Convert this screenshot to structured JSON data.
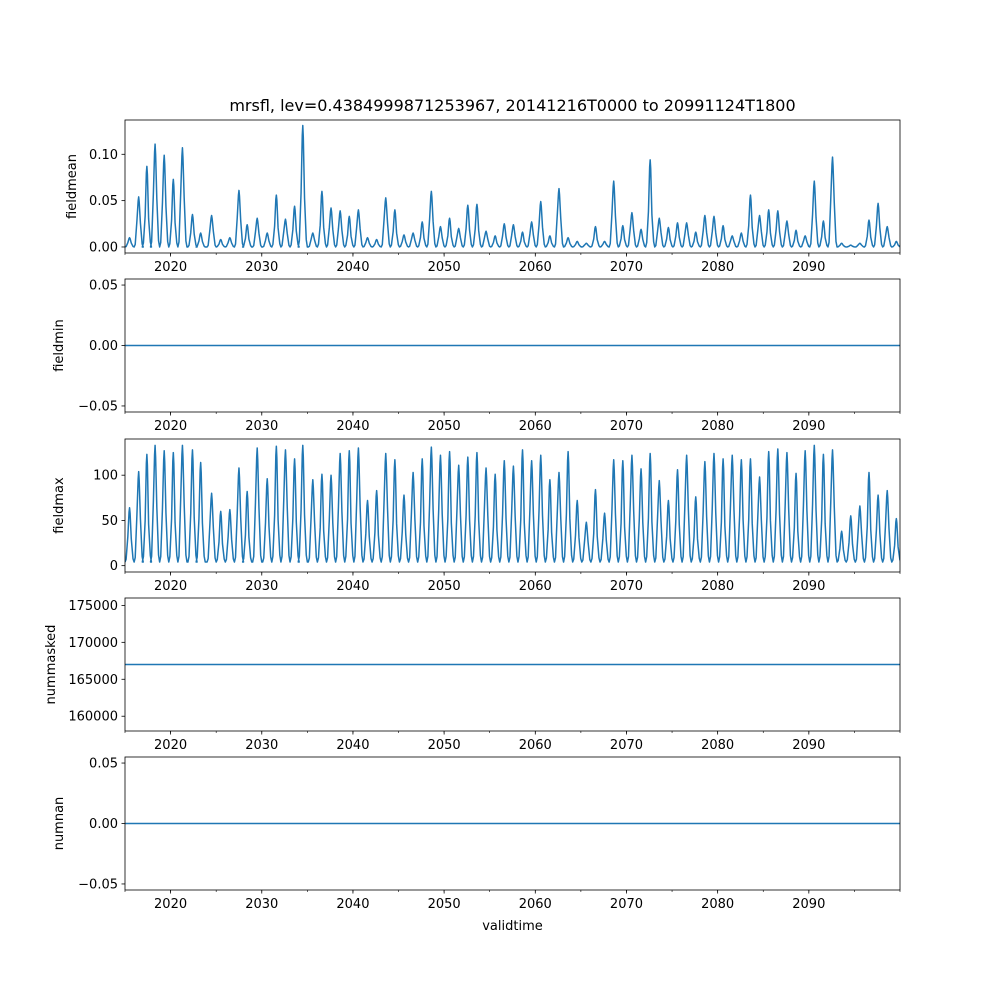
{
  "figure": {
    "title": "mrsfl, lev=0.4384999871253967, 20141216T0000 to 20991124T1800",
    "xlabel": "validtime",
    "xlim": [
      2015.0,
      2100.0
    ],
    "x_ticks": [
      2020,
      2030,
      2040,
      2050,
      2060,
      2070,
      2080,
      2090
    ],
    "x_tick_labels": [
      "2020",
      "2030",
      "2040",
      "2050",
      "2060",
      "2070",
      "2080",
      "2090"
    ],
    "line_color": "#1f77b4"
  },
  "chart_data": [
    {
      "type": "line",
      "ylabel": "fieldmean",
      "ylim": [
        -0.0065,
        0.137
      ],
      "y_ticks": [
        0.0,
        0.05,
        0.1
      ],
      "y_tick_labels": [
        "0.00",
        "0.05",
        "0.10"
      ],
      "baseline": 0.0,
      "events": [
        [
          2015.5,
          0.01
        ],
        [
          2016.5,
          0.054
        ],
        [
          2017.4,
          0.087
        ],
        [
          2018.3,
          0.111
        ],
        [
          2019.3,
          0.099
        ],
        [
          2020.3,
          0.073
        ],
        [
          2021.3,
          0.107
        ],
        [
          2022.4,
          0.035
        ],
        [
          2023.3,
          0.015
        ],
        [
          2024.5,
          0.034
        ],
        [
          2025.5,
          0.008
        ],
        [
          2026.5,
          0.01
        ],
        [
          2027.5,
          0.061
        ],
        [
          2028.4,
          0.024
        ],
        [
          2029.5,
          0.031
        ],
        [
          2030.6,
          0.015
        ],
        [
          2031.6,
          0.056
        ],
        [
          2032.6,
          0.03
        ],
        [
          2033.6,
          0.044
        ],
        [
          2034.5,
          0.131
        ],
        [
          2035.6,
          0.015
        ],
        [
          2036.6,
          0.06
        ],
        [
          2037.6,
          0.042
        ],
        [
          2038.6,
          0.039
        ],
        [
          2039.6,
          0.033
        ],
        [
          2040.6,
          0.04
        ],
        [
          2041.6,
          0.01
        ],
        [
          2042.6,
          0.008
        ],
        [
          2043.6,
          0.053
        ],
        [
          2044.6,
          0.04
        ],
        [
          2045.6,
          0.013
        ],
        [
          2046.6,
          0.015
        ],
        [
          2047.6,
          0.027
        ],
        [
          2048.6,
          0.06
        ],
        [
          2049.6,
          0.022
        ],
        [
          2050.6,
          0.031
        ],
        [
          2051.6,
          0.02
        ],
        [
          2052.6,
          0.045
        ],
        [
          2053.6,
          0.046
        ],
        [
          2054.6,
          0.017
        ],
        [
          2055.6,
          0.012
        ],
        [
          2056.6,
          0.025
        ],
        [
          2057.6,
          0.024
        ],
        [
          2058.6,
          0.016
        ],
        [
          2059.6,
          0.027
        ],
        [
          2060.6,
          0.049
        ],
        [
          2061.6,
          0.012
        ],
        [
          2062.6,
          0.063
        ],
        [
          2063.6,
          0.01
        ],
        [
          2064.6,
          0.006
        ],
        [
          2065.6,
          0.004
        ],
        [
          2066.6,
          0.022
        ],
        [
          2067.6,
          0.006
        ],
        [
          2068.6,
          0.071
        ],
        [
          2069.6,
          0.023
        ],
        [
          2070.6,
          0.037
        ],
        [
          2071.6,
          0.019
        ],
        [
          2072.6,
          0.094
        ],
        [
          2073.6,
          0.031
        ],
        [
          2074.6,
          0.021
        ],
        [
          2075.6,
          0.026
        ],
        [
          2076.6,
          0.026
        ],
        [
          2077.6,
          0.016
        ],
        [
          2078.6,
          0.034
        ],
        [
          2079.6,
          0.033
        ],
        [
          2080.6,
          0.023
        ],
        [
          2081.6,
          0.012
        ],
        [
          2082.6,
          0.015
        ],
        [
          2083.6,
          0.056
        ],
        [
          2084.6,
          0.034
        ],
        [
          2085.6,
          0.04
        ],
        [
          2086.6,
          0.039
        ],
        [
          2087.6,
          0.028
        ],
        [
          2088.6,
          0.018
        ],
        [
          2089.6,
          0.012
        ],
        [
          2090.6,
          0.071
        ],
        [
          2091.6,
          0.028
        ],
        [
          2092.6,
          0.097
        ],
        [
          2093.6,
          0.004
        ],
        [
          2094.6,
          0.002
        ],
        [
          2095.6,
          0.004
        ],
        [
          2096.6,
          0.029
        ],
        [
          2097.6,
          0.047
        ],
        [
          2098.6,
          0.022
        ],
        [
          2099.6,
          0.006
        ]
      ]
    },
    {
      "type": "line",
      "ylabel": "fieldmin",
      "ylim": [
        -0.055,
        0.055
      ],
      "y_ticks": [
        -0.05,
        0.0,
        0.05
      ],
      "y_tick_labels": [
        "−0.05",
        "0.00",
        "0.05"
      ],
      "constant": 0.0
    },
    {
      "type": "line",
      "ylabel": "fieldmax",
      "ylim": [
        -7,
        140
      ],
      "y_ticks": [
        0,
        50,
        100
      ],
      "y_tick_labels": [
        "0",
        "50",
        "100"
      ],
      "baseline": 4,
      "events": [
        [
          2015.5,
          64
        ],
        [
          2016.5,
          104
        ],
        [
          2017.4,
          123
        ],
        [
          2018.3,
          133
        ],
        [
          2019.3,
          127
        ],
        [
          2020.3,
          125
        ],
        [
          2021.3,
          133
        ],
        [
          2022.4,
          128
        ],
        [
          2023.3,
          114
        ],
        [
          2024.5,
          80
        ],
        [
          2025.5,
          60
        ],
        [
          2026.5,
          62
        ],
        [
          2027.5,
          108
        ],
        [
          2028.4,
          82
        ],
        [
          2029.5,
          130
        ],
        [
          2030.6,
          96
        ],
        [
          2031.6,
          132
        ],
        [
          2032.6,
          128
        ],
        [
          2033.6,
          118
        ],
        [
          2034.5,
          133
        ],
        [
          2035.6,
          95
        ],
        [
          2036.6,
          101
        ],
        [
          2037.6,
          100
        ],
        [
          2038.6,
          124
        ],
        [
          2039.6,
          127
        ],
        [
          2040.6,
          130
        ],
        [
          2041.6,
          72
        ],
        [
          2042.6,
          83
        ],
        [
          2043.6,
          124
        ],
        [
          2044.6,
          117
        ],
        [
          2045.6,
          78
        ],
        [
          2046.6,
          103
        ],
        [
          2047.6,
          118
        ],
        [
          2048.6,
          131
        ],
        [
          2049.6,
          122
        ],
        [
          2050.6,
          126
        ],
        [
          2051.6,
          111
        ],
        [
          2052.6,
          120
        ],
        [
          2053.6,
          125
        ],
        [
          2054.6,
          108
        ],
        [
          2055.6,
          101
        ],
        [
          2056.6,
          116
        ],
        [
          2057.6,
          110
        ],
        [
          2058.6,
          128
        ],
        [
          2059.6,
          116
        ],
        [
          2060.6,
          122
        ],
        [
          2061.6,
          95
        ],
        [
          2062.6,
          103
        ],
        [
          2063.6,
          126
        ],
        [
          2064.6,
          72
        ],
        [
          2065.6,
          48
        ],
        [
          2066.6,
          84
        ],
        [
          2067.6,
          58
        ],
        [
          2068.6,
          117
        ],
        [
          2069.6,
          116
        ],
        [
          2070.6,
          122
        ],
        [
          2071.6,
          107
        ],
        [
          2072.6,
          124
        ],
        [
          2073.6,
          94
        ],
        [
          2074.6,
          72
        ],
        [
          2075.6,
          106
        ],
        [
          2076.6,
          122
        ],
        [
          2077.6,
          76
        ],
        [
          2078.6,
          115
        ],
        [
          2079.6,
          124
        ],
        [
          2080.6,
          118
        ],
        [
          2081.6,
          122
        ],
        [
          2082.6,
          117
        ],
        [
          2083.6,
          118
        ],
        [
          2084.6,
          98
        ],
        [
          2085.6,
          126
        ],
        [
          2086.6,
          129
        ],
        [
          2087.6,
          125
        ],
        [
          2088.6,
          102
        ],
        [
          2089.6,
          127
        ],
        [
          2090.6,
          133
        ],
        [
          2091.6,
          123
        ],
        [
          2092.6,
          128
        ],
        [
          2093.6,
          38
        ],
        [
          2094.6,
          55
        ],
        [
          2095.6,
          66
        ],
        [
          2096.6,
          103
        ],
        [
          2097.6,
          78
        ],
        [
          2098.6,
          83
        ],
        [
          2099.6,
          52
        ]
      ]
    },
    {
      "type": "line",
      "ylabel": "nummasked",
      "ylim": [
        158000,
        176000
      ],
      "y_ticks": [
        160000,
        165000,
        170000,
        175000
      ],
      "y_tick_labels": [
        "160000",
        "165000",
        "170000",
        "175000"
      ],
      "constant": 167000
    },
    {
      "type": "line",
      "ylabel": "numnan",
      "ylim": [
        -0.055,
        0.055
      ],
      "y_ticks": [
        -0.05,
        0.0,
        0.05
      ],
      "y_tick_labels": [
        "−0.05",
        "0.00",
        "0.05"
      ],
      "constant": 0.0
    }
  ]
}
